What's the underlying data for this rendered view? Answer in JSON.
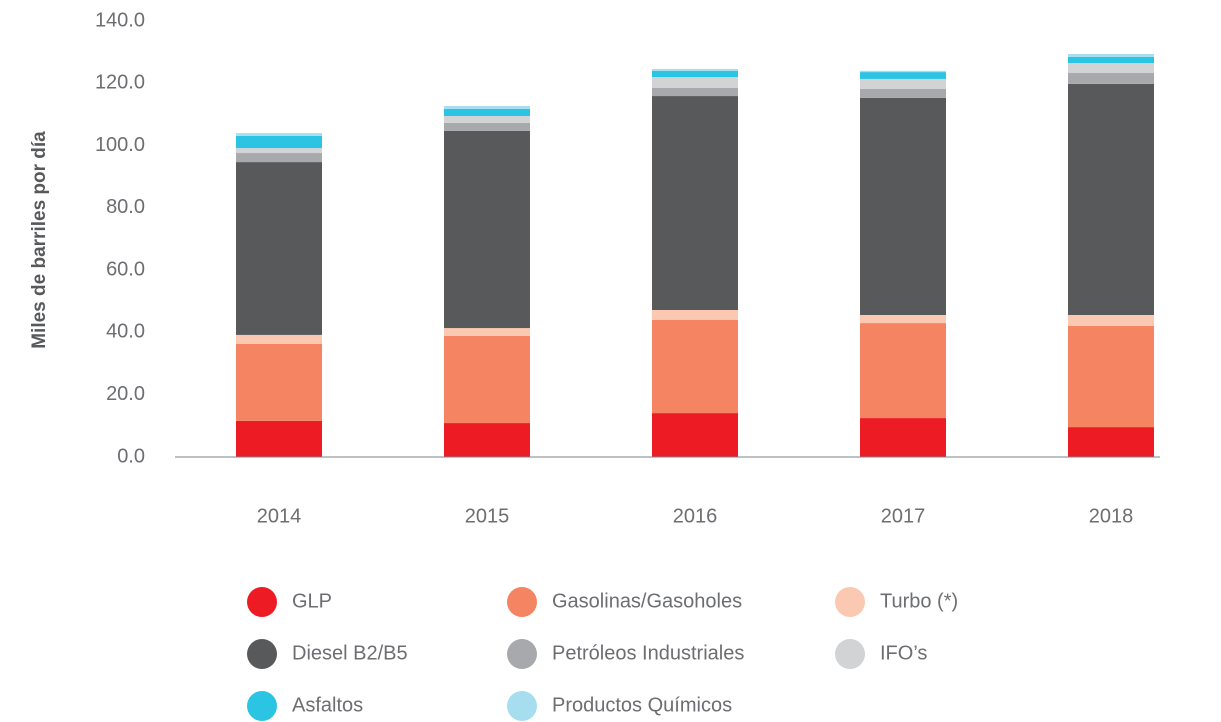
{
  "chart_data": {
    "type": "stacked-bar",
    "y_label": "Miles de barriles por día",
    "categories": [
      "2014",
      "2015",
      "2016",
      "2017",
      "2018"
    ],
    "series": [
      {
        "name": "GLP",
        "color": "#ed1c24",
        "values": [
          11.6,
          10.9,
          14.1,
          12.5,
          9.6
        ]
      },
      {
        "name": "Gasolinas/Gasoholes",
        "color": "#f48462",
        "values": [
          24.7,
          28.0,
          29.9,
          30.5,
          32.5
        ]
      },
      {
        "name": "Turbo (*)",
        "color": "#fbc8b2",
        "values": [
          2.9,
          2.5,
          3.2,
          2.6,
          3.5
        ]
      },
      {
        "name": "Diesel B2/B5",
        "color": "#58595b",
        "values": [
          55.5,
          63.3,
          68.7,
          69.7,
          74.2
        ]
      },
      {
        "name": "Petróleos Industriales",
        "color": "#a7a9ac",
        "values": [
          2.9,
          2.6,
          2.6,
          2.9,
          3.5
        ]
      },
      {
        "name": "IFO’s",
        "color": "#d1d3d4",
        "values": [
          1.6,
          2.2,
          3.5,
          3.2,
          3.2
        ]
      },
      {
        "name": "Asfaltos",
        "color": "#2bc4e3",
        "values": [
          3.9,
          2.3,
          2.0,
          2.2,
          2.0
        ]
      },
      {
        "name": "Productos Químicos",
        "color": "#a6def0",
        "values": [
          0.9,
          0.9,
          0.6,
          0.4,
          0.9
        ]
      }
    ],
    "ylim": [
      0,
      140
    ],
    "yticks": [
      {
        "value": 0,
        "label": "0.0"
      },
      {
        "value": 20,
        "label": "20.0"
      },
      {
        "value": 40,
        "label": "40.0"
      },
      {
        "value": 60,
        "label": "60.0"
      },
      {
        "value": 80,
        "label": "80.0"
      },
      {
        "value": 100,
        "label": "100.0"
      },
      {
        "value": 120,
        "label": "120.0"
      },
      {
        "value": 140,
        "label": "140.0"
      }
    ],
    "grid": false
  }
}
